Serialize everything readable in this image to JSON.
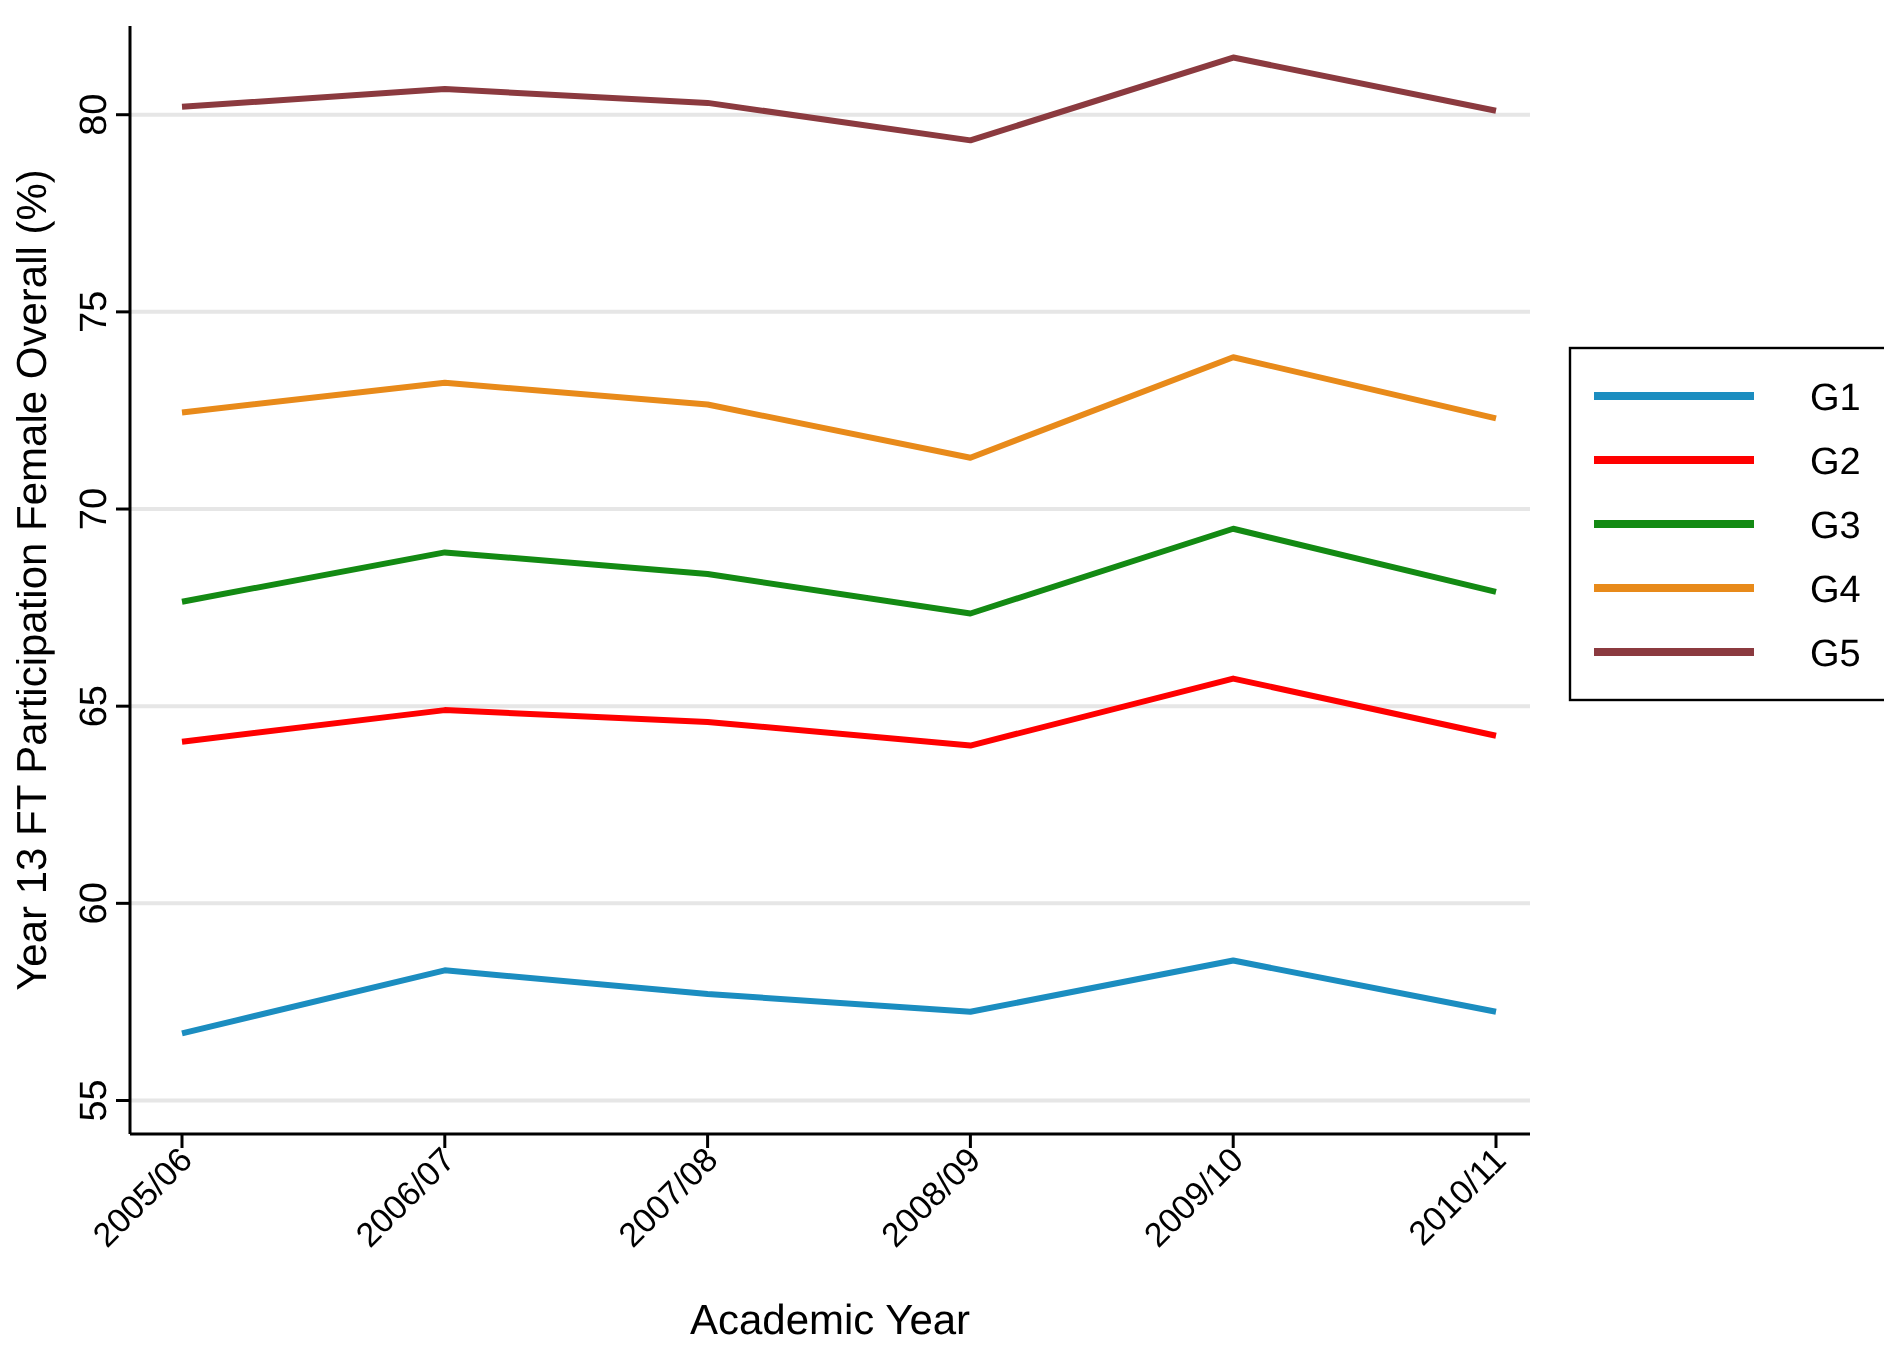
{
  "chart_data": {
    "type": "line",
    "xlabel": "Academic Year",
    "ylabel": "Year 13 FT Participation Female Overall (%)",
    "categories": [
      "2005/06",
      "2006/07",
      "2007/08",
      "2008/09",
      "2009/10",
      "2010/11"
    ],
    "series": [
      {
        "name": "G1",
        "color": "#1b8dc0",
        "values": [
          56.7,
          58.3,
          57.7,
          57.25,
          58.55,
          57.25
        ]
      },
      {
        "name": "G2",
        "color": "#ff0000",
        "values": [
          64.1,
          64.9,
          64.6,
          64.0,
          65.7,
          64.25
        ]
      },
      {
        "name": "G3",
        "color": "#138a13",
        "values": [
          67.65,
          68.9,
          68.35,
          67.35,
          69.5,
          67.9
        ]
      },
      {
        "name": "G4",
        "color": "#e88a1a",
        "values": [
          72.45,
          73.2,
          72.65,
          71.3,
          73.85,
          72.3
        ]
      },
      {
        "name": "G5",
        "color": "#8b3a3f",
        "values": [
          80.2,
          80.65,
          80.3,
          79.35,
          81.45,
          80.1
        ]
      }
    ],
    "ylim": [
      54.15,
      82.25
    ],
    "yticks": [
      55,
      60,
      65,
      70,
      75,
      80
    ],
    "grid": "y",
    "legend": "right",
    "line_style": "solid",
    "marker": "none"
  }
}
